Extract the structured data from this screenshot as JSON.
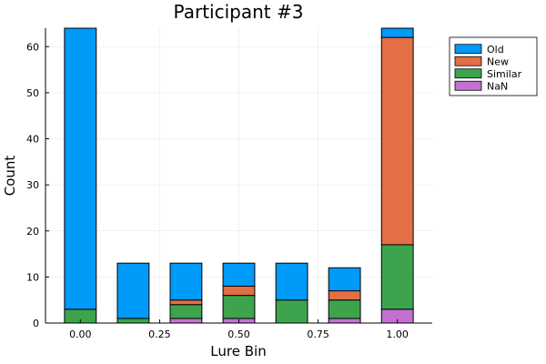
{
  "chart_data": {
    "type": "bar",
    "stacked": true,
    "title": "Participant #3",
    "xlabel": "Lure Bin",
    "ylabel": "Count",
    "x": [
      0.0,
      0.1667,
      0.3333,
      0.5,
      0.6667,
      0.8333,
      1.0
    ],
    "xticks": [
      0.0,
      0.25,
      0.5,
      0.75,
      1.0
    ],
    "xtick_labels": [
      "0.00",
      "0.25",
      "0.50",
      "0.75",
      "1.00"
    ],
    "yticks": [
      0,
      10,
      20,
      30,
      40,
      50,
      60
    ],
    "xlim": [
      -0.11,
      1.11
    ],
    "ylim": [
      0,
      64
    ],
    "grid": true,
    "legend_position": "top-right outside",
    "series": [
      {
        "name": "NaN",
        "color": "#c271d2",
        "values": [
          0,
          0,
          1,
          1,
          0,
          1,
          3
        ]
      },
      {
        "name": "Similar",
        "color": "#3da44d",
        "values": [
          3,
          1,
          3,
          5,
          5,
          4,
          14
        ]
      },
      {
        "name": "New",
        "color": "#e26f46",
        "values": [
          0,
          0,
          1,
          2,
          0,
          2,
          45
        ]
      },
      {
        "name": "Old",
        "color": "#009af9",
        "values": [
          61,
          12,
          8,
          5,
          8,
          5,
          2
        ]
      }
    ],
    "legend_order": [
      "Old",
      "New",
      "Similar",
      "NaN"
    ]
  }
}
